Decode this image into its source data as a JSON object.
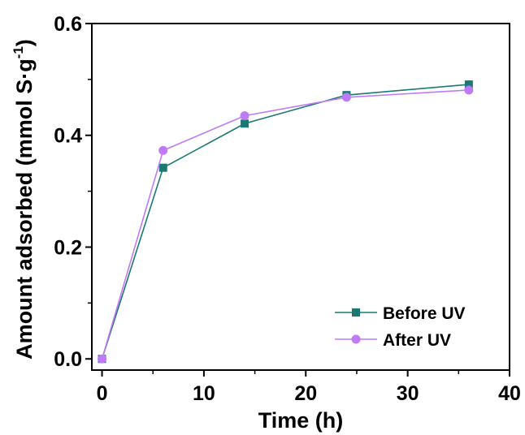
{
  "chart_data": {
    "type": "line",
    "xlabel": "Time (h)",
    "ylabel": {
      "main": "Amount adsorbed (mmol S·g",
      "sup": "-1",
      "close": ")"
    },
    "xlim": [
      -1,
      40
    ],
    "ylim": [
      -0.02,
      0.6
    ],
    "xticks": [
      0,
      10,
      20,
      30,
      40
    ],
    "xtick_labels": [
      "0",
      "10",
      "20",
      "30",
      "40"
    ],
    "yticks": [
      0.0,
      0.2,
      0.4,
      0.6
    ],
    "ytick_labels": [
      "0.0",
      "0.2",
      "0.4",
      "0.6"
    ],
    "x_minor_ticks": [
      5,
      15,
      25,
      35
    ],
    "y_minor_ticks": [
      0.1,
      0.3,
      0.5
    ],
    "grid": false,
    "legend_position": "bottom-right",
    "series": [
      {
        "name": "Before UV",
        "color": "#1a7a73",
        "marker": "square",
        "x": [
          0,
          6,
          14,
          24,
          36
        ],
        "y": [
          0.0,
          0.342,
          0.421,
          0.472,
          0.491
        ]
      },
      {
        "name": "After UV",
        "color": "#bf7af7",
        "marker": "circle",
        "x": [
          0,
          6,
          14,
          24,
          36
        ],
        "y": [
          0.0,
          0.373,
          0.435,
          0.468,
          0.481
        ]
      }
    ]
  }
}
